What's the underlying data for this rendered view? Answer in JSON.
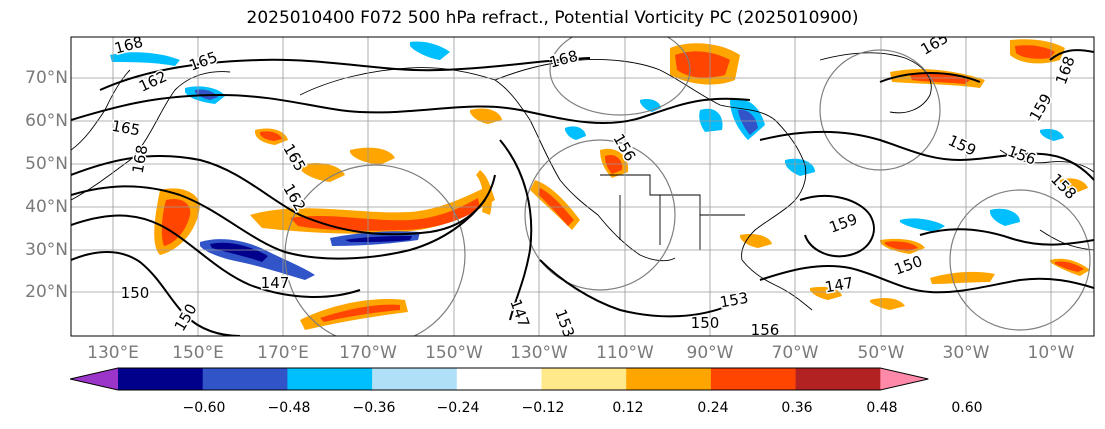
{
  "title": "2025010400 F072 500 hPa refract., Potential Vorticity PC (2025010900)",
  "lat_labels": [
    "70°N",
    "60°N",
    "50°N",
    "40°N",
    "30°N",
    "20°N"
  ],
  "lon_labels": [
    "130°E",
    "150°E",
    "170°E",
    "170°W",
    "150°W",
    "130°W",
    "110°W",
    "90°W",
    "70°W",
    "50°W",
    "30°W",
    "10°W"
  ],
  "contour_labels": [
    "168",
    "165",
    "162",
    "165",
    "168",
    "165",
    "162",
    "159",
    "159",
    "156",
    "158",
    "159",
    "150",
    "147",
    "147",
    "150",
    "153",
    "150",
    "147",
    "153",
    "150",
    "156",
    "156",
    "165",
    "168",
    "168"
  ],
  "colorbar": {
    "ticks": [
      "−0.60",
      "−0.48",
      "−0.36",
      "−0.24",
      "−0.12",
      "0.12",
      "0.24",
      "0.36",
      "0.48",
      "0.60"
    ],
    "colors": [
      "#9b35c9",
      "#00008b",
      "#3155c8",
      "#00bfff",
      "#b0e0f8",
      "#ffffff",
      "#ffe98a",
      "#ffa500",
      "#ff4500",
      "#b22222",
      "#ff89a8"
    ]
  }
}
